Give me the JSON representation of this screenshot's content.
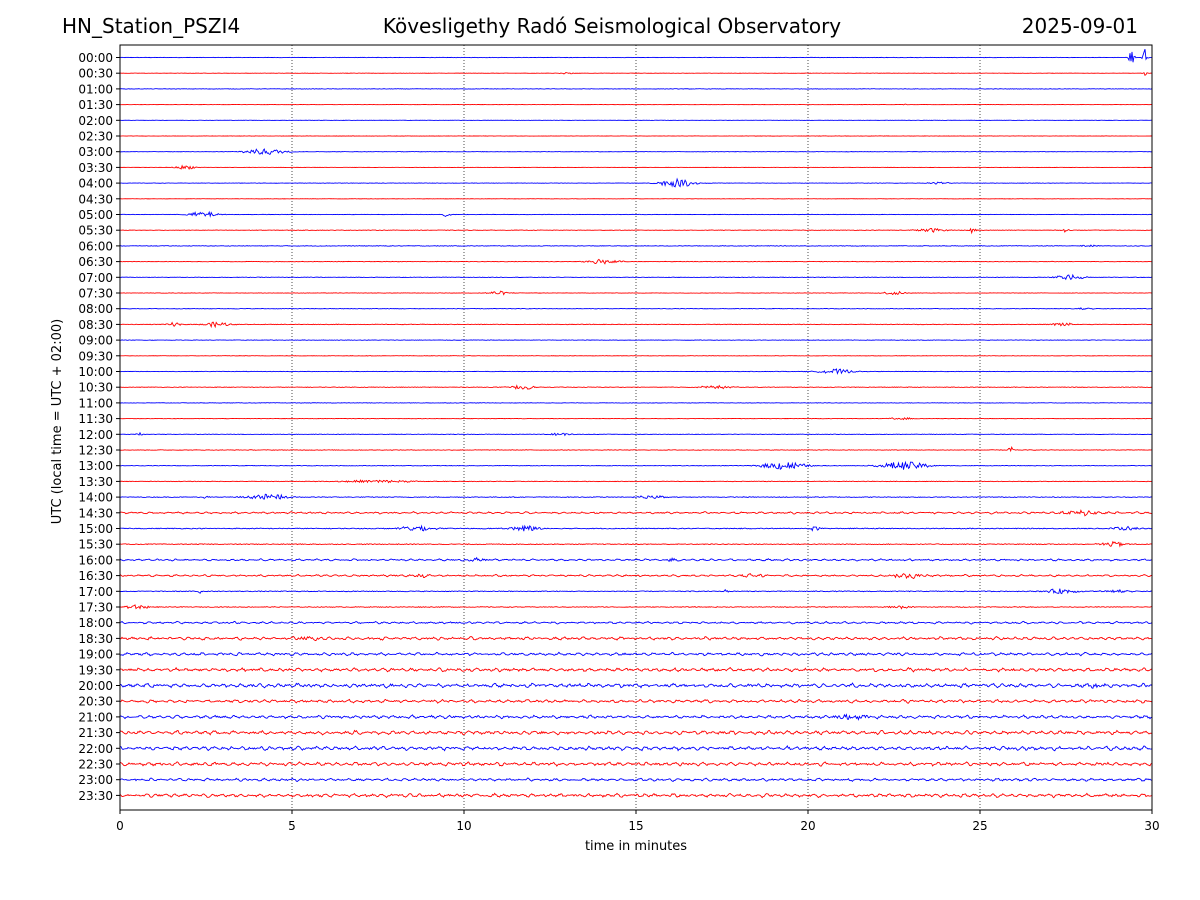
{
  "header": {
    "station": "HN_Station_PSZI4",
    "observatory": "Kövesligethy Radó Seismological Observatory",
    "date": "2025-09-01"
  },
  "colors": {
    "even_rows": "#0000ff",
    "odd_rows": "#ff0000",
    "grid": "#000000"
  },
  "chart_data": {
    "type": "line",
    "title": "Kövesligethy Radó Seismological Observatory",
    "xlabel": "time in minutes",
    "ylabel": "UTC (local time = UTC + 02:00)",
    "xlim": [
      0,
      30
    ],
    "x_ticks": [
      0,
      5,
      10,
      15,
      20,
      25,
      30
    ],
    "grid": "vertical dotted lines at 5-minute ticks",
    "legend": "none",
    "series": [
      {
        "name": "00:00",
        "color": "blue",
        "noise": 0.4,
        "events": [
          [
            29.4,
            7,
            0.08
          ],
          [
            29.8,
            10,
            0.06
          ]
        ]
      },
      {
        "name": "00:30",
        "color": "red",
        "noise": 0.3,
        "events": [
          [
            13.0,
            0.8,
            0.2
          ],
          [
            29.8,
            3,
            0.05
          ]
        ]
      },
      {
        "name": "01:00",
        "color": "blue",
        "noise": 0.5,
        "events": []
      },
      {
        "name": "01:30",
        "color": "red",
        "noise": 0.3,
        "events": [
          [
            22.8,
            1,
            0.1
          ]
        ]
      },
      {
        "name": "02:00",
        "color": "blue",
        "noise": 0.3,
        "events": []
      },
      {
        "name": "02:30",
        "color": "red",
        "noise": 0.3,
        "events": []
      },
      {
        "name": "03:00",
        "color": "blue",
        "noise": 0.4,
        "events": [
          [
            4.2,
            3,
            0.6
          ]
        ]
      },
      {
        "name": "03:30",
        "color": "red",
        "noise": 0.3,
        "events": [
          [
            1.9,
            2,
            0.3
          ]
        ]
      },
      {
        "name": "04:00",
        "color": "blue",
        "noise": 0.4,
        "events": [
          [
            16.2,
            4,
            0.5
          ],
          [
            23.8,
            1.2,
            0.3
          ]
        ]
      },
      {
        "name": "04:30",
        "color": "red",
        "noise": 0.3,
        "events": []
      },
      {
        "name": "05:00",
        "color": "blue",
        "noise": 0.4,
        "events": [
          [
            2.4,
            3,
            0.4
          ],
          [
            9.5,
            4,
            0.08
          ]
        ]
      },
      {
        "name": "05:30",
        "color": "red",
        "noise": 0.5,
        "events": [
          [
            23.6,
            2,
            0.4
          ],
          [
            24.8,
            5,
            0.08
          ],
          [
            27.5,
            4,
            0.08
          ]
        ]
      },
      {
        "name": "06:00",
        "color": "blue",
        "noise": 0.6,
        "events": [
          [
            28.2,
            1,
            0.3
          ]
        ]
      },
      {
        "name": "06:30",
        "color": "red",
        "noise": 0.5,
        "events": [
          [
            14.0,
            2.5,
            0.5
          ]
        ]
      },
      {
        "name": "07:00",
        "color": "blue",
        "noise": 0.5,
        "events": [
          [
            27.6,
            2.5,
            0.4
          ]
        ]
      },
      {
        "name": "07:30",
        "color": "red",
        "noise": 0.4,
        "events": [
          [
            11.0,
            2,
            0.3
          ],
          [
            22.5,
            2,
            0.3
          ]
        ]
      },
      {
        "name": "08:00",
        "color": "blue",
        "noise": 0.5,
        "events": [
          [
            28.0,
            1,
            0.3
          ]
        ]
      },
      {
        "name": "08:30",
        "color": "red",
        "noise": 0.6,
        "events": [
          [
            1.6,
            2,
            0.2
          ],
          [
            2.8,
            2.5,
            0.4
          ],
          [
            27.4,
            2,
            0.3
          ]
        ]
      },
      {
        "name": "09:00",
        "color": "blue",
        "noise": 0.5,
        "events": []
      },
      {
        "name": "09:30",
        "color": "red",
        "noise": 0.4,
        "events": []
      },
      {
        "name": "10:00",
        "color": "blue",
        "noise": 0.5,
        "events": [
          [
            20.8,
            2.5,
            0.5
          ]
        ]
      },
      {
        "name": "10:30",
        "color": "red",
        "noise": 0.6,
        "events": [
          [
            11.7,
            2.5,
            0.3
          ],
          [
            17.3,
            1.5,
            0.5
          ]
        ]
      },
      {
        "name": "11:00",
        "color": "blue",
        "noise": 0.5,
        "events": []
      },
      {
        "name": "11:30",
        "color": "red",
        "noise": 0.4,
        "events": [
          [
            22.7,
            1.5,
            0.3
          ]
        ]
      },
      {
        "name": "12:00",
        "color": "blue",
        "noise": 0.5,
        "events": [
          [
            0.6,
            2,
            0.1
          ],
          [
            12.8,
            1.5,
            0.3
          ]
        ]
      },
      {
        "name": "12:30",
        "color": "red",
        "noise": 0.6,
        "events": [
          [
            25.9,
            6,
            0.06
          ]
        ]
      },
      {
        "name": "13:00",
        "color": "blue",
        "noise": 0.5,
        "events": [
          [
            19.3,
            4,
            0.6
          ],
          [
            22.8,
            4,
            0.7
          ]
        ]
      },
      {
        "name": "13:30",
        "color": "red",
        "noise": 0.6,
        "events": [
          [
            7.5,
            1.5,
            1.0
          ]
        ]
      },
      {
        "name": "14:00",
        "color": "blue",
        "noise": 0.8,
        "events": [
          [
            4.3,
            3,
            0.6
          ],
          [
            2.5,
            3,
            0.06
          ],
          [
            15.5,
            1.5,
            0.5
          ]
        ]
      },
      {
        "name": "14:30",
        "color": "red",
        "noise": 1.0,
        "events": [
          [
            28.0,
            2,
            0.6
          ]
        ]
      },
      {
        "name": "15:00",
        "color": "blue",
        "noise": 0.9,
        "events": [
          [
            8.6,
            3,
            0.5
          ],
          [
            11.8,
            3,
            0.4
          ],
          [
            20.2,
            2,
            0.2
          ],
          [
            29.2,
            2,
            0.4
          ]
        ]
      },
      {
        "name": "15:30",
        "color": "red",
        "noise": 0.9,
        "events": [
          [
            28.9,
            2.5,
            0.4
          ]
        ]
      },
      {
        "name": "16:00",
        "color": "blue",
        "noise": 1.0,
        "events": [
          [
            10.3,
            1.5,
            0.3
          ],
          [
            16.0,
            1.5,
            0.2
          ]
        ]
      },
      {
        "name": "16:30",
        "color": "red",
        "noise": 1.0,
        "events": [
          [
            18.4,
            2,
            0.3
          ],
          [
            22.9,
            3,
            0.4
          ],
          [
            8.8,
            1.5,
            0.2
          ]
        ]
      },
      {
        "name": "17:00",
        "color": "blue",
        "noise": 0.9,
        "events": [
          [
            2.3,
            3,
            0.06
          ],
          [
            17.6,
            4,
            0.06
          ],
          [
            27.4,
            2.5,
            0.5
          ],
          [
            29.0,
            1.5,
            0.4
          ]
        ]
      },
      {
        "name": "17:30",
        "color": "red",
        "noise": 0.8,
        "events": [
          [
            0.5,
            2,
            0.4
          ],
          [
            22.7,
            1.5,
            0.3
          ]
        ]
      },
      {
        "name": "18:00",
        "color": "blue",
        "noise": 1.1,
        "events": []
      },
      {
        "name": "18:30",
        "color": "red",
        "noise": 1.5,
        "events": [
          [
            5.5,
            1.5,
            0.5
          ]
        ]
      },
      {
        "name": "19:00",
        "color": "blue",
        "noise": 1.5,
        "events": []
      },
      {
        "name": "19:30",
        "color": "red",
        "noise": 1.8,
        "events": []
      },
      {
        "name": "20:00",
        "color": "blue",
        "noise": 2.0,
        "events": [
          [
            28.4,
            2,
            0.4
          ]
        ]
      },
      {
        "name": "20:30",
        "color": "red",
        "noise": 1.6,
        "events": []
      },
      {
        "name": "21:00",
        "color": "blue",
        "noise": 1.6,
        "events": [
          [
            21.4,
            2,
            0.6
          ]
        ]
      },
      {
        "name": "21:30",
        "color": "red",
        "noise": 2.0,
        "events": []
      },
      {
        "name": "22:00",
        "color": "blue",
        "noise": 2.0,
        "events": []
      },
      {
        "name": "22:30",
        "color": "red",
        "noise": 1.8,
        "events": []
      },
      {
        "name": "23:00",
        "color": "blue",
        "noise": 1.4,
        "events": []
      },
      {
        "name": "23:30",
        "color": "red",
        "noise": 1.8,
        "events": []
      }
    ]
  }
}
